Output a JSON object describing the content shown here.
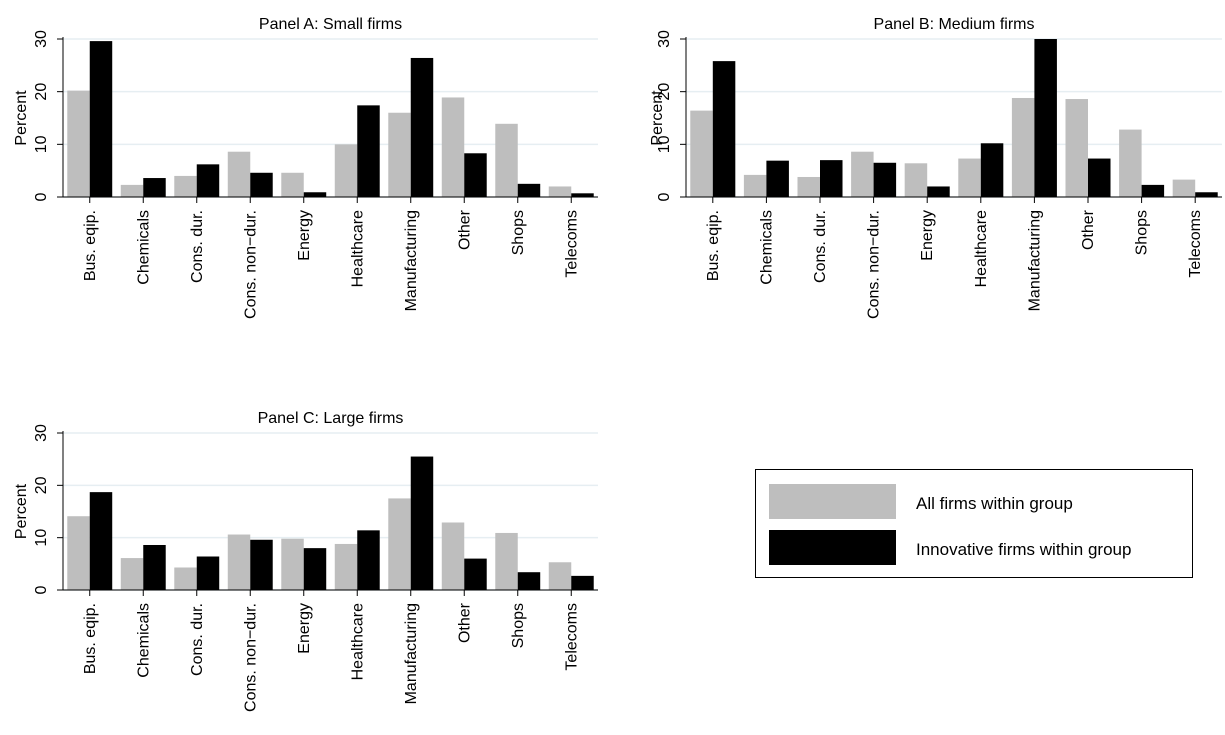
{
  "chart_data": [
    {
      "type": "bar",
      "title": "Panel A: Small firms",
      "ylabel": "Percent",
      "ylim": [
        0,
        30
      ],
      "yticks": [
        0,
        10,
        20,
        30
      ],
      "grid": true,
      "categories": [
        "Bus. eqip.",
        "Chemicals",
        "Cons. dur.",
        "Cons. non−dur.",
        "Energy",
        "Healthcare",
        "Manufacturing",
        "Other",
        "Shops",
        "Telecoms"
      ],
      "series": [
        {
          "name": "All firms within group",
          "color": "#bebebe",
          "values": [
            20.2,
            2.3,
            4.0,
            8.6,
            4.6,
            10.0,
            16.0,
            18.9,
            13.9,
            2.0
          ]
        },
        {
          "name": "Innovative firms within group",
          "color": "#000000",
          "values": [
            29.6,
            3.6,
            6.2,
            4.6,
            0.9,
            17.4,
            26.4,
            8.3,
            2.5,
            0.7
          ]
        }
      ]
    },
    {
      "type": "bar",
      "title": "Panel B: Medium firms",
      "ylabel": "Percent",
      "ylim": [
        0,
        30
      ],
      "yticks": [
        0,
        10,
        20,
        30
      ],
      "grid": true,
      "categories": [
        "Bus. eqip.",
        "Chemicals",
        "Cons. dur.",
        "Cons. non−dur.",
        "Energy",
        "Healthcare",
        "Manufacturing",
        "Other",
        "Shops",
        "Telecoms"
      ],
      "series": [
        {
          "name": "All firms within group",
          "color": "#bebebe",
          "values": [
            16.4,
            4.2,
            3.8,
            8.6,
            6.4,
            7.3,
            18.8,
            18.6,
            12.8,
            3.3
          ]
        },
        {
          "name": "Innovative firms within group",
          "color": "#000000",
          "values": [
            25.8,
            6.9,
            7.0,
            6.5,
            2.0,
            10.2,
            32.0,
            7.3,
            2.3,
            0.9
          ]
        }
      ]
    },
    {
      "type": "bar",
      "title": "Panel C: Large firms",
      "ylabel": "Percent",
      "ylim": [
        0,
        30
      ],
      "yticks": [
        0,
        10,
        20,
        30
      ],
      "grid": true,
      "categories": [
        "Bus. eqip.",
        "Chemicals",
        "Cons. dur.",
        "Cons. non−dur.",
        "Energy",
        "Healthcare",
        "Manufacturing",
        "Other",
        "Shops",
        "Telecoms"
      ],
      "series": [
        {
          "name": "All firms within group",
          "color": "#bebebe",
          "values": [
            14.1,
            6.1,
            4.3,
            10.6,
            9.8,
            8.8,
            17.5,
            12.9,
            10.9,
            5.3
          ]
        },
        {
          "name": "Innovative firms within group",
          "color": "#000000",
          "values": [
            18.7,
            8.6,
            6.4,
            9.6,
            8.0,
            11.4,
            25.5,
            6.0,
            3.4,
            2.7
          ]
        }
      ]
    }
  ],
  "legend": {
    "items": [
      {
        "label": "All firms within group",
        "color": "#bebebe"
      },
      {
        "label": "Innovative firms within group",
        "color": "#000000"
      }
    ]
  }
}
